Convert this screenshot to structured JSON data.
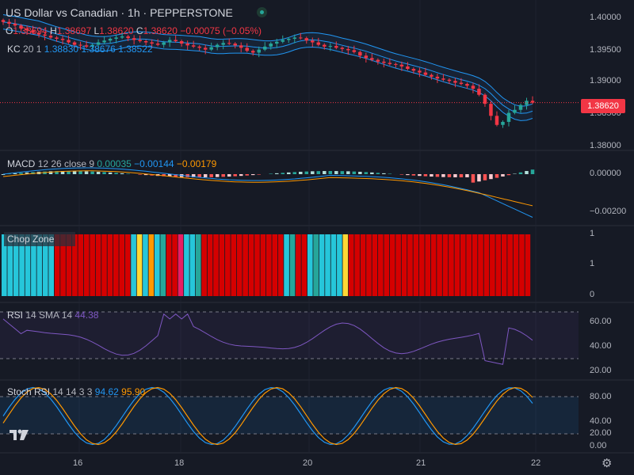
{
  "header": {
    "title": "US Dollar vs Canadian · 1h · PEPPERSTONE",
    "ohlc": {
      "o_label": "O",
      "o": "1.38694",
      "h_label": "H",
      "h": "1.38697",
      "l_label": "L",
      "l": "1.38620",
      "c_label": "C",
      "c": "1.38620",
      "change": "−0.00075 (−0.05%)"
    }
  },
  "indicators": {
    "kc": {
      "name": "KC",
      "params": "20 1",
      "upper": "1.38830",
      "basis": "1.38676",
      "lower": "1.38522"
    },
    "macd": {
      "name": "MACD",
      "params": "12 26 close 9",
      "hist": "0.00035",
      "macd": "−0.00144",
      "signal": "−0.00179"
    },
    "chop": {
      "name": "Chop Zone"
    },
    "rsi": {
      "name": "RSI",
      "params": "14 SMA 14",
      "value": "44.38"
    },
    "stoch": {
      "name": "Stoch RSI",
      "params": "14 14 3 3",
      "k": "94.62",
      "d": "95.90"
    }
  },
  "price_axis": {
    "labels": [
      "1.40000",
      "1.39500",
      "1.39000",
      "1.38500",
      "1.38000"
    ],
    "current_price": "1.38620"
  },
  "macd_axis": {
    "labels": [
      "0.00000",
      "−0.00200"
    ]
  },
  "chop_axis": {
    "labels": [
      "1",
      "1",
      "0"
    ]
  },
  "rsi_axis": {
    "labels": [
      "60.00",
      "40.00",
      "20.00"
    ]
  },
  "stoch_axis": {
    "labels": [
      "80.00",
      "40.00",
      "20.00",
      "0.00"
    ]
  },
  "time_axis": {
    "labels": [
      "16",
      "18",
      "20",
      "21",
      "22"
    ]
  },
  "colors": {
    "background": "#161a25",
    "up": "#26a69a",
    "down": "#f23645",
    "kc_band": "#2196f3",
    "macd_line": "#2196f3",
    "signal_line": "#ff9800",
    "rsi_line": "#7e57c2",
    "stoch_k": "#2196f3",
    "stoch_d": "#ff9800",
    "chop_red": "#d50000",
    "chop_cyan": "#26c6da",
    "chop_teal": "#26a69a",
    "chop_yellow": "#fdd835",
    "chop_orange": "#ff9800",
    "chop_pink": "#e91e63"
  },
  "icons": {
    "logo": "tradingview-logo-icon",
    "settings": "gear-icon",
    "status": "market-status-icon"
  },
  "chart_data": {
    "type": "candlestick",
    "symbol": "US Dollar vs Canadian",
    "timeframe": "1h",
    "price_series": [
      1.3996,
      1.3993,
      1.399,
      1.3985,
      1.3982,
      1.3978,
      1.3975,
      1.3973,
      1.397,
      1.3968,
      1.3966,
      1.3962,
      1.3958,
      1.3957,
      1.3955,
      1.3958,
      1.3962,
      1.3965,
      1.3968,
      1.397,
      1.3972,
      1.3969,
      1.3966,
      1.3964,
      1.3962,
      1.396,
      1.3958,
      1.3962,
      1.3966,
      1.3964,
      1.396,
      1.3957,
      1.3955,
      1.3953,
      1.395,
      1.3954,
      1.3958,
      1.3961,
      1.396,
      1.3957,
      1.3953,
      1.3948,
      1.3945,
      1.395,
      1.3955,
      1.396,
      1.3963,
      1.3966,
      1.3968,
      1.397,
      1.3969,
      1.3965,
      1.3962,
      1.3958,
      1.3955,
      1.3956,
      1.3953,
      1.3951,
      1.3949,
      1.3946,
      1.394,
      1.3936,
      1.3933,
      1.393,
      1.3928,
      1.3926,
      1.3925,
      1.3922,
      1.3918,
      1.3915,
      1.3912,
      1.3908,
      1.3905,
      1.3902,
      1.39,
      1.3898,
      1.3895,
      1.3893,
      1.389,
      1.3885,
      1.3875,
      1.386,
      1.384,
      1.3825,
      1.383,
      1.3845,
      1.385,
      1.3858,
      1.3865,
      1.3862
    ],
    "ylim": [
      1.378,
      1.401
    ],
    "x_labels": [
      "16",
      "18",
      "20",
      "21",
      "22"
    ]
  }
}
